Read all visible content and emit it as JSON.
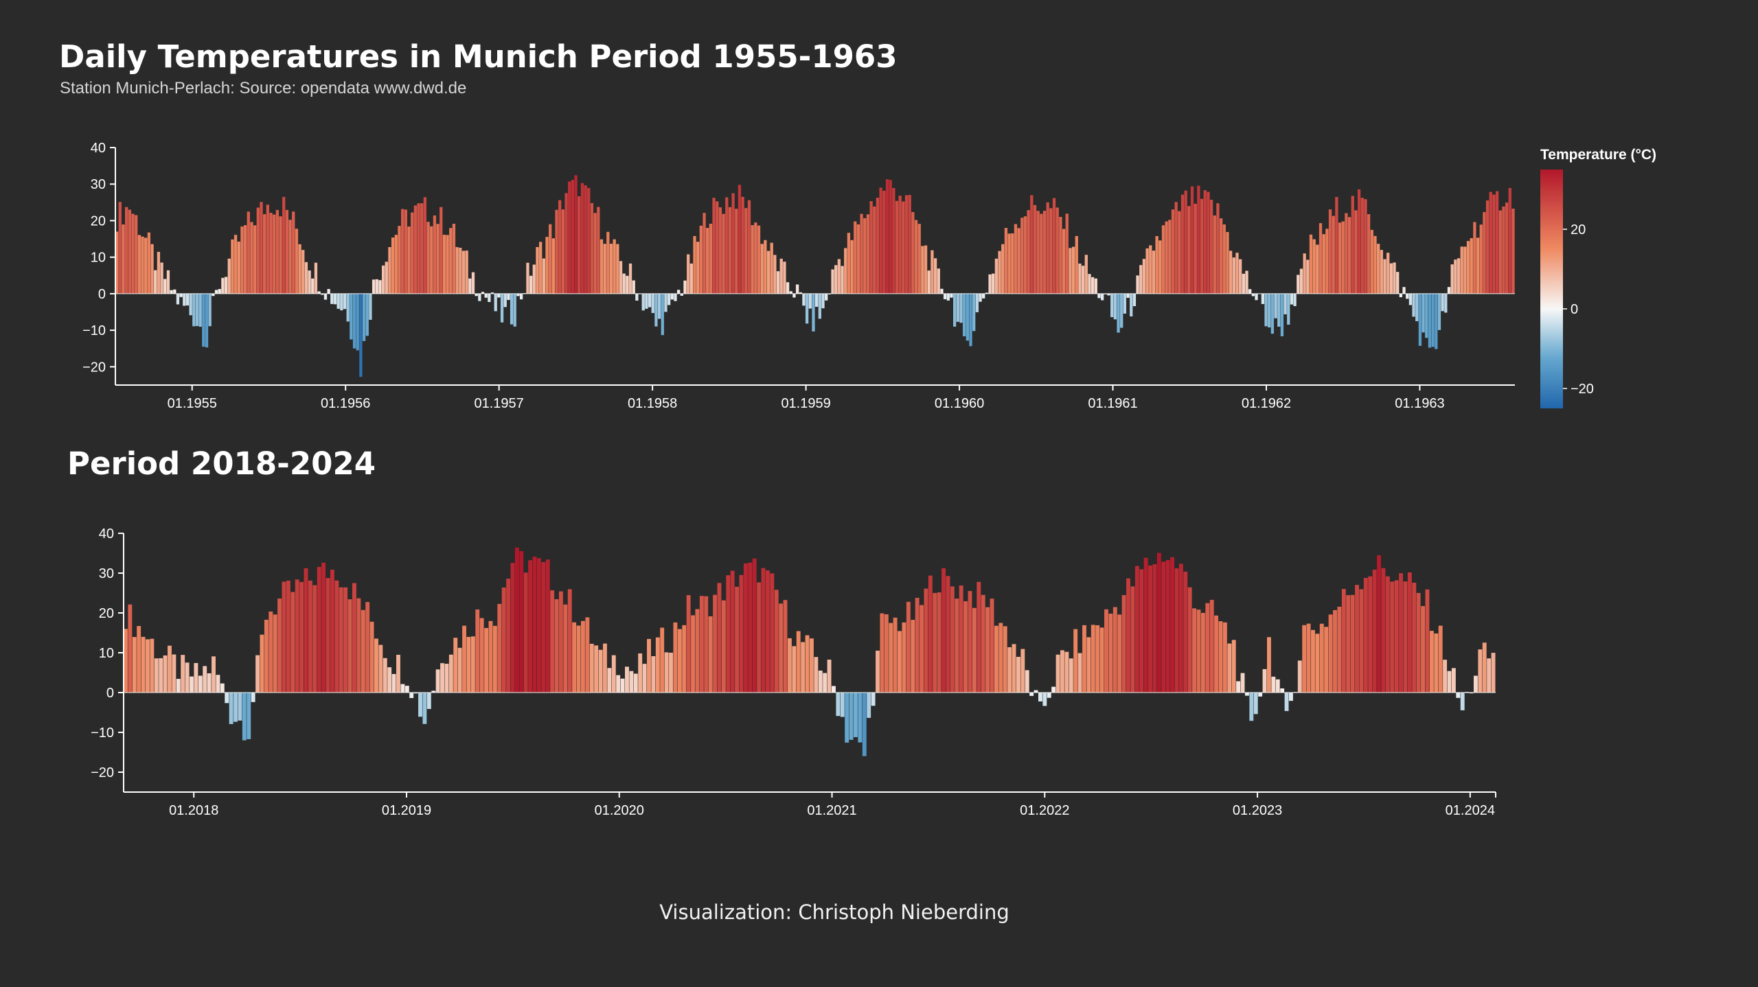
{
  "header": {
    "title": "Daily Temperatures in Munich Period 1955-1963",
    "subtitle": "Station Munich-Perlach: Source: opendata www.dwd.de",
    "second_title": "Period 2018-2024",
    "credit": "Visualization: Christoph Nieberding"
  },
  "legend": {
    "title": "Temperature (°C)",
    "ticks": [
      {
        "value": 20,
        "label": "20"
      },
      {
        "value": 0,
        "label": "0"
      },
      {
        "value": -20,
        "label": "−20"
      }
    ],
    "domain": [
      -25,
      35
    ],
    "colors": {
      "cold_extreme": "#2166ac",
      "cold": "#67a9cf",
      "neutral": "#f7f7f7",
      "warm": "#ef8a62",
      "hot_extreme": "#b2182b"
    }
  },
  "chart_data": [
    {
      "type": "bar",
      "title": "Daily Temperatures in Munich Period 1955-1963",
      "x_domain_years": [
        1954.5,
        1963.62
      ],
      "ylim": [
        -25,
        40
      ],
      "y_ticks": [
        40,
        30,
        20,
        10,
        0,
        -10,
        -20
      ],
      "y_tick_labels": [
        "40",
        "30",
        "20",
        "10",
        "0",
        "−10",
        "−20"
      ],
      "x_ticks": [
        {
          "year": 1955,
          "label": "01.1955"
        },
        {
          "year": 1956,
          "label": "01.1956"
        },
        {
          "year": 1957,
          "label": "01.1957"
        },
        {
          "year": 1958,
          "label": "01.1958"
        },
        {
          "year": 1959,
          "label": "01.1959"
        },
        {
          "year": 1960,
          "label": "01.1960"
        },
        {
          "year": 1961,
          "label": "01.1961"
        },
        {
          "year": 1962,
          "label": "01.1962"
        },
        {
          "year": 1963,
          "label": "01.1963"
        }
      ],
      "series_resolution": "approx. weekly daily-maximum samples",
      "series": [
        {
          "month": "1954-07",
          "value": 21
        },
        {
          "month": "1954-08",
          "value": 24
        },
        {
          "month": "1954-09",
          "value": 17
        },
        {
          "month": "1954-10",
          "value": 9
        },
        {
          "month": "1954-11",
          "value": 3
        },
        {
          "month": "1954-12",
          "value": -3
        },
        {
          "month": "1955-01",
          "value": -6
        },
        {
          "month": "1955-02",
          "value": -12
        },
        {
          "month": "1955-03",
          "value": 3
        },
        {
          "month": "1955-04",
          "value": 11
        },
        {
          "month": "1955-05",
          "value": 18
        },
        {
          "month": "1955-06",
          "value": 22
        },
        {
          "month": "1955-07",
          "value": 25
        },
        {
          "month": "1955-08",
          "value": 24
        },
        {
          "month": "1955-09",
          "value": 18
        },
        {
          "month": "1955-10",
          "value": 9
        },
        {
          "month": "1955-11",
          "value": 3
        },
        {
          "month": "1955-12",
          "value": -2
        },
        {
          "month": "1956-01",
          "value": -5
        },
        {
          "month": "1956-02",
          "value": -20
        },
        {
          "month": "1956-03",
          "value": 2
        },
        {
          "month": "1956-04",
          "value": 12
        },
        {
          "month": "1956-05",
          "value": 19
        },
        {
          "month": "1956-06",
          "value": 22
        },
        {
          "month": "1956-07",
          "value": 23
        },
        {
          "month": "1956-08",
          "value": 21
        },
        {
          "month": "1956-09",
          "value": 18
        },
        {
          "month": "1956-10",
          "value": 10
        },
        {
          "month": "1956-11",
          "value": 3
        },
        {
          "month": "1956-12",
          "value": -2
        },
        {
          "month": "1957-01",
          "value": -6
        },
        {
          "month": "1957-02",
          "value": -5
        },
        {
          "month": "1957-03",
          "value": 5
        },
        {
          "month": "1957-04",
          "value": 12
        },
        {
          "month": "1957-05",
          "value": 18
        },
        {
          "month": "1957-06",
          "value": 28
        },
        {
          "month": "1957-07",
          "value": 30
        },
        {
          "month": "1957-08",
          "value": 24
        },
        {
          "month": "1957-09",
          "value": 17
        },
        {
          "month": "1957-10",
          "value": 10
        },
        {
          "month": "1957-11",
          "value": 5
        },
        {
          "month": "1957-12",
          "value": -2
        },
        {
          "month": "1958-01",
          "value": -9
        },
        {
          "month": "1958-02",
          "value": -6
        },
        {
          "month": "1958-03",
          "value": 2
        },
        {
          "month": "1958-04",
          "value": 12
        },
        {
          "month": "1958-05",
          "value": 22
        },
        {
          "month": "1958-06",
          "value": 24
        },
        {
          "month": "1958-07",
          "value": 27
        },
        {
          "month": "1958-08",
          "value": 25
        },
        {
          "month": "1958-09",
          "value": 18
        },
        {
          "month": "1958-10",
          "value": 11
        },
        {
          "month": "1958-11",
          "value": 5
        },
        {
          "month": "1958-12",
          "value": 0
        },
        {
          "month": "1959-01",
          "value": -8
        },
        {
          "month": "1959-02",
          "value": -5
        },
        {
          "month": "1959-03",
          "value": 8
        },
        {
          "month": "1959-04",
          "value": 14
        },
        {
          "month": "1959-05",
          "value": 20
        },
        {
          "month": "1959-06",
          "value": 26
        },
        {
          "month": "1959-07",
          "value": 30
        },
        {
          "month": "1959-08",
          "value": 28
        },
        {
          "month": "1959-09",
          "value": 22
        },
        {
          "month": "1959-10",
          "value": 12
        },
        {
          "month": "1959-11",
          "value": 4
        },
        {
          "month": "1959-12",
          "value": -2
        },
        {
          "month": "1960-01",
          "value": -15
        },
        {
          "month": "1960-02",
          "value": -6
        },
        {
          "month": "1960-03",
          "value": 5
        },
        {
          "month": "1960-04",
          "value": 14
        },
        {
          "month": "1960-05",
          "value": 20
        },
        {
          "month": "1960-06",
          "value": 24
        },
        {
          "month": "1960-07",
          "value": 24
        },
        {
          "month": "1960-08",
          "value": 23
        },
        {
          "month": "1960-09",
          "value": 18
        },
        {
          "month": "1960-10",
          "value": 11
        },
        {
          "month": "1960-11",
          "value": 4
        },
        {
          "month": "1960-12",
          "value": -2
        },
        {
          "month": "1961-01",
          "value": -10
        },
        {
          "month": "1961-02",
          "value": -3
        },
        {
          "month": "1961-03",
          "value": 7
        },
        {
          "month": "1961-04",
          "value": 15
        },
        {
          "month": "1961-05",
          "value": 19
        },
        {
          "month": "1961-06",
          "value": 25
        },
        {
          "month": "1961-07",
          "value": 26
        },
        {
          "month": "1961-08",
          "value": 25
        },
        {
          "month": "1961-09",
          "value": 21
        },
        {
          "month": "1961-10",
          "value": 12
        },
        {
          "month": "1961-11",
          "value": 4
        },
        {
          "month": "1961-12",
          "value": -3
        },
        {
          "month": "1962-01",
          "value": -10
        },
        {
          "month": "1962-02",
          "value": -8
        },
        {
          "month": "1962-03",
          "value": 2
        },
        {
          "month": "1962-04",
          "value": 13
        },
        {
          "month": "1962-05",
          "value": 17
        },
        {
          "month": "1962-06",
          "value": 23
        },
        {
          "month": "1962-07",
          "value": 24
        },
        {
          "month": "1962-08",
          "value": 25
        },
        {
          "month": "1962-09",
          "value": 18
        },
        {
          "month": "1962-10",
          "value": 10
        },
        {
          "month": "1962-11",
          "value": 2
        },
        {
          "month": "1962-12",
          "value": -6
        },
        {
          "month": "1963-01",
          "value": -15
        },
        {
          "month": "1963-02",
          "value": -12
        },
        {
          "month": "1963-03",
          "value": 5
        },
        {
          "month": "1963-04",
          "value": 14
        },
        {
          "month": "1963-05",
          "value": 19
        },
        {
          "month": "1963-06",
          "value": 24
        },
        {
          "month": "1963-07",
          "value": 27
        }
      ]
    },
    {
      "type": "bar",
      "title": "Period 2018-2024",
      "x_domain_years": [
        2017.67,
        2024.12
      ],
      "ylim": [
        -25,
        40
      ],
      "y_ticks": [
        40,
        30,
        20,
        10,
        0,
        -10,
        -20
      ],
      "y_tick_labels": [
        "40",
        "30",
        "20",
        "10",
        "0",
        "−10",
        "−20"
      ],
      "x_ticks": [
        {
          "year": 2018,
          "label": "01.2018"
        },
        {
          "year": 2019,
          "label": "01.2019"
        },
        {
          "year": 2020,
          "label": "01.2020"
        },
        {
          "year": 2021,
          "label": "01.2021"
        },
        {
          "year": 2022,
          "label": "01.2022"
        },
        {
          "year": 2023,
          "label": "01.2023"
        },
        {
          "year": 2024,
          "label": "01.2024"
        }
      ],
      "series_resolution": "approx. weekly daily-maximum samples",
      "series": [
        {
          "month": "2017-08",
          "value": 20
        },
        {
          "month": "2017-09",
          "value": 15
        },
        {
          "month": "2017-10",
          "value": 10
        },
        {
          "month": "2017-11",
          "value": 6
        },
        {
          "month": "2017-12",
          "value": 4
        },
        {
          "month": "2018-01",
          "value": 7
        },
        {
          "month": "2018-02",
          "value": -5
        },
        {
          "month": "2018-03",
          "value": -9
        },
        {
          "month": "2018-04",
          "value": 20
        },
        {
          "month": "2018-05",
          "value": 24
        },
        {
          "month": "2018-06",
          "value": 27
        },
        {
          "month": "2018-07",
          "value": 30
        },
        {
          "month": "2018-08",
          "value": 31
        },
        {
          "month": "2018-09",
          "value": 25
        },
        {
          "month": "2018-10",
          "value": 18
        },
        {
          "month": "2018-11",
          "value": 9
        },
        {
          "month": "2018-12",
          "value": 5
        },
        {
          "month": "2019-01",
          "value": -7
        },
        {
          "month": "2019-02",
          "value": 10
        },
        {
          "month": "2019-03",
          "value": 14
        },
        {
          "month": "2019-04",
          "value": 19
        },
        {
          "month": "2019-05",
          "value": 20
        },
        {
          "month": "2019-06",
          "value": 33
        },
        {
          "month": "2019-07",
          "value": 33
        },
        {
          "month": "2019-08",
          "value": 30
        },
        {
          "month": "2019-09",
          "value": 24
        },
        {
          "month": "2019-10",
          "value": 18
        },
        {
          "month": "2019-11",
          "value": 9
        },
        {
          "month": "2019-12",
          "value": 8
        },
        {
          "month": "2020-01",
          "value": 5
        },
        {
          "month": "2020-02",
          "value": 11
        },
        {
          "month": "2020-03",
          "value": 14
        },
        {
          "month": "2020-04",
          "value": 21
        },
        {
          "month": "2020-05",
          "value": 22
        },
        {
          "month": "2020-06",
          "value": 26
        },
        {
          "month": "2020-07",
          "value": 30
        },
        {
          "month": "2020-08",
          "value": 31
        },
        {
          "month": "2020-09",
          "value": 25
        },
        {
          "month": "2020-10",
          "value": 15
        },
        {
          "month": "2020-11",
          "value": 10
        },
        {
          "month": "2020-12",
          "value": 5
        },
        {
          "month": "2021-01",
          "value": -10
        },
        {
          "month": "2021-02",
          "value": -16
        },
        {
          "month": "2021-03",
          "value": 17
        },
        {
          "month": "2021-04",
          "value": 18
        },
        {
          "month": "2021-05",
          "value": 20
        },
        {
          "month": "2021-06",
          "value": 29
        },
        {
          "month": "2021-07",
          "value": 27
        },
        {
          "month": "2021-08",
          "value": 25
        },
        {
          "month": "2021-09",
          "value": 23
        },
        {
          "month": "2021-10",
          "value": 16
        },
        {
          "month": "2021-11",
          "value": 8
        },
        {
          "month": "2021-12",
          "value": -6
        },
        {
          "month": "2022-01",
          "value": 7
        },
        {
          "month": "2022-02",
          "value": 12
        },
        {
          "month": "2022-03",
          "value": 16
        },
        {
          "month": "2022-04",
          "value": 20
        },
        {
          "month": "2022-05",
          "value": 26
        },
        {
          "month": "2022-06",
          "value": 32
        },
        {
          "month": "2022-07",
          "value": 35
        },
        {
          "month": "2022-08",
          "value": 31
        },
        {
          "month": "2022-09",
          "value": 22
        },
        {
          "month": "2022-10",
          "value": 19
        },
        {
          "month": "2022-11",
          "value": 12
        },
        {
          "month": "2022-12",
          "value": -10
        },
        {
          "month": "2023-01",
          "value": 13
        },
        {
          "month": "2023-02",
          "value": -8
        },
        {
          "month": "2023-03",
          "value": 16
        },
        {
          "month": "2023-04",
          "value": 17
        },
        {
          "month": "2023-05",
          "value": 22
        },
        {
          "month": "2023-06",
          "value": 28
        },
        {
          "month": "2023-07",
          "value": 32
        },
        {
          "month": "2023-08",
          "value": 30
        },
        {
          "month": "2023-09",
          "value": 27
        },
        {
          "month": "2023-10",
          "value": 22
        },
        {
          "month": "2023-11",
          "value": 11
        },
        {
          "month": "2023-12",
          "value": -5
        },
        {
          "month": "2024-01",
          "value": 9
        }
      ]
    }
  ]
}
